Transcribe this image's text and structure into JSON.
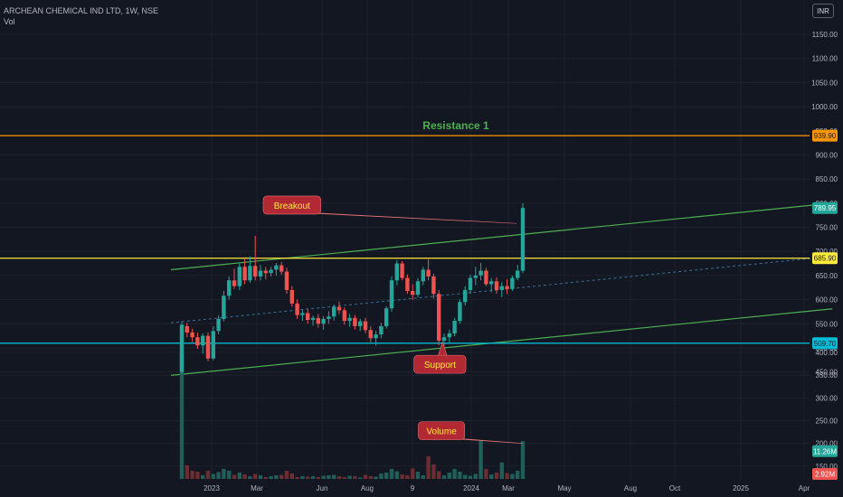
{
  "legend": {
    "symbol": "ARCHEAN CHEMICAL IND LTD, 1W, NSE",
    "volume_label": "Vol"
  },
  "currency_button": "INR",
  "colors": {
    "background": "#131722",
    "grid": "#1e222d",
    "up": "#26a69a",
    "down": "#ef5350",
    "up_volume": "#1f5e59",
    "down_volume": "#6b2d31",
    "channel": "#4caf50",
    "resistance": "#ff9800",
    "breakout_level": "#ffeb3b",
    "support": "#00bcd4",
    "callout": "#b22833",
    "callout_text": "#ffeb3b"
  },
  "chart_data": {
    "type": "candlestick",
    "title": "",
    "x_axis": {
      "ticks": [
        "2023",
        "Mar",
        "Jun",
        "Aug",
        "9",
        "2024",
        "Mar",
        "May",
        "Aug",
        "Oct",
        "2025",
        "Apr"
      ]
    },
    "y_axis": {
      "price_ticks": [
        450,
        500,
        550,
        600,
        650,
        700,
        750,
        800,
        850,
        900,
        950,
        1000,
        1050,
        1100,
        1150
      ],
      "price_tick_labels": [
        "450.00",
        "500.00",
        "550.00",
        "600.00",
        "650.00",
        "700.00",
        "750.00",
        "800.00",
        "850.00",
        "900.00",
        "950.00",
        "1000.00",
        "1050.00",
        "1100.00",
        "1150.00"
      ],
      "volume_ticks": [
        150,
        200,
        250,
        300,
        350,
        400
      ],
      "volume_tick_labels": [
        "150.00",
        "200.00",
        "250.00",
        "300.00",
        "350.00",
        "400.00"
      ],
      "price_range": [
        425,
        1180
      ],
      "volume_range": [
        122,
        400
      ]
    },
    "price_labels": [
      {
        "label": "939.90",
        "value": 939.9,
        "color": "#ff9800"
      },
      {
        "label": "789.95",
        "value": 789.95,
        "color": "#26a69a"
      },
      {
        "label": "685.90",
        "value": 685.9,
        "color": "#ffeb3b"
      },
      {
        "label": "509.70",
        "value": 509.7,
        "color": "#00bcd4"
      }
    ],
    "volume_labels": [
      {
        "label": "11.26M",
        "value": 183,
        "color": "#26a69a"
      },
      {
        "label": "2.92M",
        "value": 133,
        "color": "#ef5350"
      }
    ],
    "levels": [
      {
        "value": 939.9,
        "color": "#ff9800"
      },
      {
        "value": 685.9,
        "color": "#ffeb3b"
      },
      {
        "value": 509.7,
        "color": "#00bcd4"
      }
    ],
    "resistance_label": {
      "text": "Resistance 1",
      "value": 961
    },
    "candles": [
      {
        "o": 450,
        "h": 555,
        "l": 445,
        "c": 548
      },
      {
        "o": 545,
        "h": 552,
        "l": 522,
        "c": 532
      },
      {
        "o": 532,
        "h": 540,
        "l": 512,
        "c": 522
      },
      {
        "o": 522,
        "h": 532,
        "l": 498,
        "c": 505
      },
      {
        "o": 505,
        "h": 530,
        "l": 488,
        "c": 525
      },
      {
        "o": 525,
        "h": 532,
        "l": 472,
        "c": 478
      },
      {
        "o": 478,
        "h": 545,
        "l": 474,
        "c": 535
      },
      {
        "o": 535,
        "h": 568,
        "l": 528,
        "c": 560
      },
      {
        "o": 560,
        "h": 618,
        "l": 555,
        "c": 608
      },
      {
        "o": 608,
        "h": 648,
        "l": 600,
        "c": 640
      },
      {
        "o": 640,
        "h": 664,
        "l": 622,
        "c": 628
      },
      {
        "o": 628,
        "h": 675,
        "l": 620,
        "c": 668
      },
      {
        "o": 668,
        "h": 684,
        "l": 632,
        "c": 640
      },
      {
        "o": 640,
        "h": 690,
        "l": 635,
        "c": 670
      },
      {
        "o": 670,
        "h": 732,
        "l": 640,
        "c": 648
      },
      {
        "o": 648,
        "h": 672,
        "l": 640,
        "c": 660
      },
      {
        "o": 660,
        "h": 668,
        "l": 642,
        "c": 655
      },
      {
        "o": 655,
        "h": 668,
        "l": 648,
        "c": 662
      },
      {
        "o": 662,
        "h": 676,
        "l": 650,
        "c": 671
      },
      {
        "o": 671,
        "h": 678,
        "l": 652,
        "c": 658
      },
      {
        "o": 658,
        "h": 666,
        "l": 612,
        "c": 620
      },
      {
        "o": 620,
        "h": 628,
        "l": 585,
        "c": 592
      },
      {
        "o": 592,
        "h": 600,
        "l": 560,
        "c": 568
      },
      {
        "o": 568,
        "h": 578,
        "l": 556,
        "c": 572
      },
      {
        "o": 572,
        "h": 580,
        "l": 550,
        "c": 558
      },
      {
        "o": 558,
        "h": 567,
        "l": 546,
        "c": 562
      },
      {
        "o": 562,
        "h": 570,
        "l": 542,
        "c": 550
      },
      {
        "o": 550,
        "h": 566,
        "l": 538,
        "c": 560
      },
      {
        "o": 560,
        "h": 576,
        "l": 550,
        "c": 565
      },
      {
        "o": 565,
        "h": 590,
        "l": 556,
        "c": 585
      },
      {
        "o": 585,
        "h": 596,
        "l": 570,
        "c": 578
      },
      {
        "o": 578,
        "h": 584,
        "l": 548,
        "c": 556
      },
      {
        "o": 556,
        "h": 570,
        "l": 544,
        "c": 562
      },
      {
        "o": 562,
        "h": 568,
        "l": 538,
        "c": 545
      },
      {
        "o": 545,
        "h": 560,
        "l": 535,
        "c": 555
      },
      {
        "o": 555,
        "h": 562,
        "l": 530,
        "c": 537
      },
      {
        "o": 537,
        "h": 545,
        "l": 512,
        "c": 520
      },
      {
        "o": 520,
        "h": 535,
        "l": 505,
        "c": 528
      },
      {
        "o": 528,
        "h": 552,
        "l": 520,
        "c": 545
      },
      {
        "o": 545,
        "h": 586,
        "l": 540,
        "c": 582
      },
      {
        "o": 582,
        "h": 648,
        "l": 575,
        "c": 640
      },
      {
        "o": 640,
        "h": 682,
        "l": 630,
        "c": 675
      },
      {
        "o": 675,
        "h": 680,
        "l": 640,
        "c": 645
      },
      {
        "o": 645,
        "h": 652,
        "l": 612,
        "c": 618
      },
      {
        "o": 618,
        "h": 632,
        "l": 600,
        "c": 610
      },
      {
        "o": 610,
        "h": 645,
        "l": 605,
        "c": 638
      },
      {
        "o": 638,
        "h": 668,
        "l": 630,
        "c": 662
      },
      {
        "o": 662,
        "h": 683,
        "l": 640,
        "c": 648
      },
      {
        "o": 648,
        "h": 654,
        "l": 602,
        "c": 612
      },
      {
        "o": 612,
        "h": 620,
        "l": 505,
        "c": 515
      },
      {
        "o": 515,
        "h": 530,
        "l": 506,
        "c": 522
      },
      {
        "o": 522,
        "h": 538,
        "l": 510,
        "c": 530
      },
      {
        "o": 530,
        "h": 562,
        "l": 524,
        "c": 556
      },
      {
        "o": 556,
        "h": 600,
        "l": 550,
        "c": 595
      },
      {
        "o": 595,
        "h": 628,
        "l": 588,
        "c": 620
      },
      {
        "o": 620,
        "h": 652,
        "l": 612,
        "c": 645
      },
      {
        "o": 645,
        "h": 668,
        "l": 630,
        "c": 650
      },
      {
        "o": 650,
        "h": 676,
        "l": 640,
        "c": 660
      },
      {
        "o": 660,
        "h": 666,
        "l": 628,
        "c": 632
      },
      {
        "o": 632,
        "h": 645,
        "l": 615,
        "c": 638
      },
      {
        "o": 638,
        "h": 646,
        "l": 612,
        "c": 620
      },
      {
        "o": 620,
        "h": 636,
        "l": 605,
        "c": 628
      },
      {
        "o": 628,
        "h": 642,
        "l": 612,
        "c": 622
      },
      {
        "o": 622,
        "h": 650,
        "l": 618,
        "c": 645
      },
      {
        "o": 645,
        "h": 672,
        "l": 640,
        "c": 660
      },
      {
        "o": 660,
        "h": 800,
        "l": 655,
        "c": 790
      }
    ],
    "volumes": [
      400,
      152,
      140,
      138,
      130,
      140,
      133,
      137,
      144,
      140,
      131,
      136,
      132,
      128,
      133,
      130,
      126,
      128,
      130,
      131,
      140,
      134,
      126,
      128,
      127,
      128,
      126,
      129,
      130,
      131,
      128,
      126,
      129,
      128,
      125,
      131,
      128,
      127,
      134,
      136,
      144,
      139,
      132,
      130,
      145,
      138,
      130,
      172,
      154,
      139,
      130,
      136,
      144,
      138,
      131,
      129,
      133,
      206,
      144,
      132,
      136,
      158,
      135,
      133,
      140,
      205
    ],
    "channel": {
      "upper": {
        "from": [
          0,
          662
        ],
        "to": [
          124,
          800
        ]
      },
      "lower": {
        "from": [
          0,
          443
        ],
        "to": [
          124,
          581
        ]
      },
      "middle": {
        "from": [
          0,
          552
        ],
        "to": [
          124,
          690
        ]
      }
    },
    "annotations": [
      {
        "text": "Breakout",
        "pane": "price",
        "value": 796,
        "index": 21,
        "pointer_index": 63.8,
        "pointer_value": 758
      },
      {
        "text": "Support",
        "pane": "price",
        "value": 466,
        "index": 49.2,
        "pointer_index": 49.7,
        "pointer_value": 513
      },
      {
        "text": "Volume",
        "pane": "volume",
        "value": 228,
        "index": 49.5,
        "pointer_index": 65,
        "pointer_value": 200
      }
    ]
  }
}
